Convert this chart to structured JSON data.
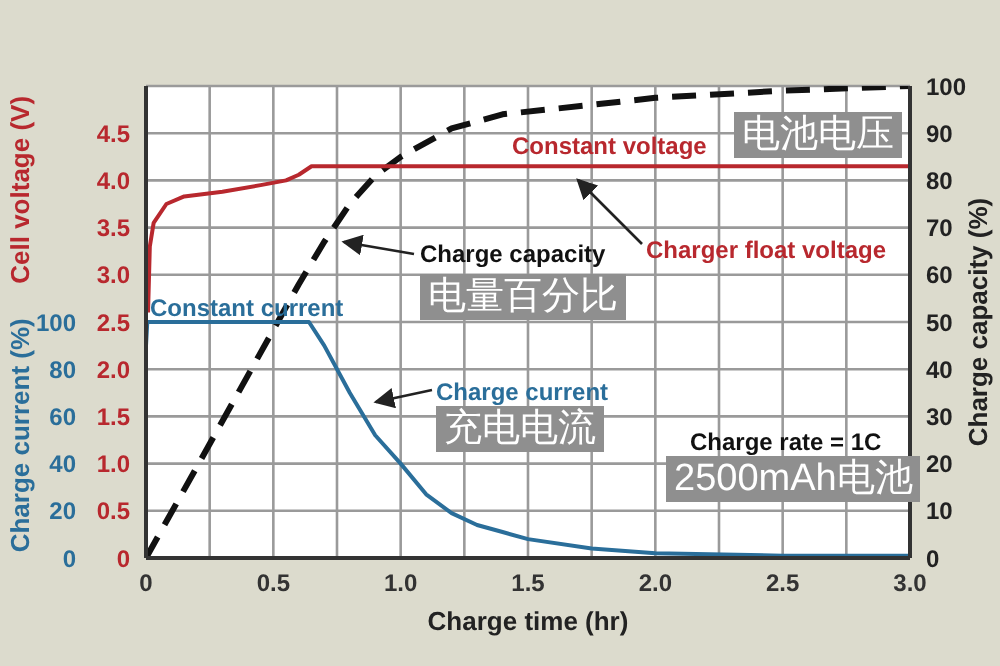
{
  "chart_data": {
    "type": "line",
    "xlabel": "Charge time (hr)",
    "ylabel": "Cell voltage (V)",
    "y2label": "Charge capacity (%)",
    "y3label": "Charge current (%)",
    "xlim": [
      0,
      3
    ],
    "xticks": [
      0,
      {
        "value": 0.25,
        "label": null
      },
      0.5,
      {
        "value": 0.75,
        "label": null
      },
      {
        "value": 1,
        "label": "1.0"
      },
      {
        "value": 1.25,
        "label": null
      },
      1.5,
      {
        "value": 1.75,
        "label": null
      },
      {
        "value": 2,
        "label": "2.0"
      },
      {
        "value": 2.25,
        "label": null
      },
      2.5,
      {
        "value": 2.75,
        "label": null
      },
      {
        "value": 3,
        "label": "3.0"
      }
    ],
    "ylim": [
      0,
      5
    ],
    "yticks": [
      0,
      0.5,
      {
        "value": 1,
        "label": "1.0"
      },
      1.5,
      {
        "value": 2,
        "label": "2.0"
      },
      2.5,
      {
        "value": 3,
        "label": "3.0"
      },
      3.5,
      {
        "value": 4,
        "label": "4.0"
      },
      4.5
    ],
    "y2lim": [
      0,
      100
    ],
    "y2ticks": [
      0,
      10,
      20,
      30,
      40,
      50,
      60,
      70,
      80,
      90,
      100
    ],
    "y3lim": [
      0,
      200
    ],
    "y3ticks": [
      0,
      20,
      40,
      60,
      80,
      100
    ],
    "grid": true,
    "marker": "none",
    "series": [
      {
        "color": "#b8282e",
        "axis": "y",
        "line_style": "solid",
        "x": [
          0.008,
          0.015,
          0.03,
          0.08,
          0.15,
          0.3,
          0.45,
          0.55,
          0.6,
          0.65,
          3
        ],
        "values": [
          2.6,
          3.3,
          3.55,
          3.75,
          3.83,
          3.88,
          3.95,
          4.0,
          4.06,
          4.15,
          4.15
        ]
      },
      {
        "color": "#2a6e9a",
        "axis": "y3",
        "line_style": "solid",
        "x": [
          0,
          0.005,
          0.64,
          0.7,
          0.8,
          0.9,
          1,
          1.1,
          1.2,
          1.3,
          1.4,
          1.5,
          1.75,
          2,
          2.5,
          3
        ],
        "values": [
          90,
          100,
          100,
          90,
          70,
          52,
          40,
          27,
          19,
          14,
          11,
          8,
          4,
          2,
          1,
          1
        ]
      },
      {
        "color": "#111111",
        "axis": "y2",
        "line_style": "dashed",
        "x": [
          0,
          0.6,
          0.7,
          0.8,
          0.9,
          1,
          1.2,
          1.4,
          1.75,
          2,
          2.5,
          3
        ],
        "values": [
          0,
          58,
          67,
          75,
          81,
          85,
          91,
          94,
          96,
          97.5,
          99,
          100
        ]
      }
    ],
    "annotations": [
      "Constant voltage",
      "电池电压",
      "Charge capacity",
      "电量百分比",
      "Charger float voltage",
      "Constant current",
      "Charge current",
      "充电电流",
      "Charge rate = 1C",
      "2500mAh电池"
    ]
  }
}
